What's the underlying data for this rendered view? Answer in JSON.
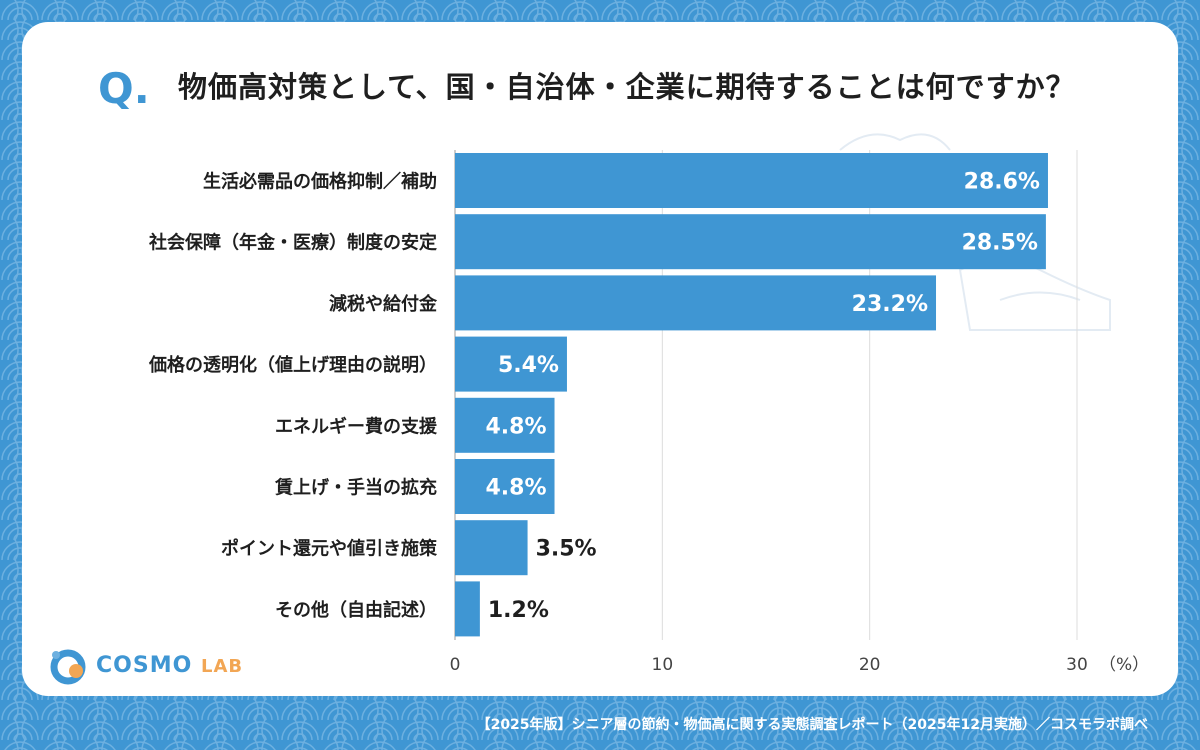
{
  "header": {
    "q_mark": "Q.",
    "title": "物価高対策として、国・自治体・企業に期待することは何ですか？"
  },
  "chart_data": {
    "type": "bar",
    "orientation": "horizontal",
    "categories": [
      "生活必需品の価格抑制／補助",
      "社会保障（年金・医療）制度の安定",
      "減税や給付金",
      "価格の透明化（値上げ理由の説明）",
      "エネルギー費の支援",
      "賃上げ・手当の拡充",
      "ポイント還元や値引き施策",
      "その他（自由記述）"
    ],
    "values": [
      28.6,
      28.5,
      23.2,
      5.4,
      4.8,
      4.8,
      3.5,
      1.2
    ],
    "value_labels": [
      "28.6%",
      "28.5%",
      "23.2%",
      "5.4%",
      "4.8%",
      "4.8%",
      "3.5%",
      "1.2%"
    ],
    "xlim": [
      0,
      30
    ],
    "x_ticks": [
      "0",
      "10",
      "20",
      "30"
    ],
    "x_unit": "（%）",
    "bar_color": "#3f96d3",
    "grid": true
  },
  "logo": {
    "main": "COSMO",
    "sub": "LAB"
  },
  "footer": "【2025年版】シニア層の節約・物価高に関する実態調査レポート（2025年12月実施）／コスモラボ調べ"
}
